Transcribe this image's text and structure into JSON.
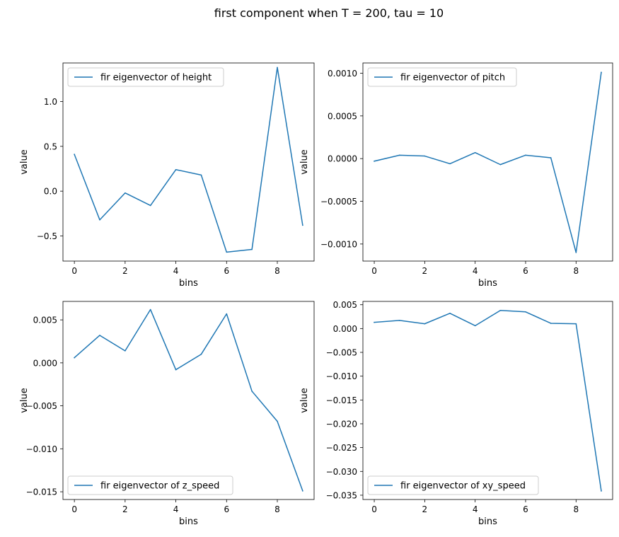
{
  "figure": {
    "suptitle": "first component when T = 200, tau = 10"
  },
  "chart_data": [
    {
      "type": "line",
      "title": "",
      "xlabel": "bins",
      "ylabel": "value",
      "xlim": [
        -0.45,
        9.45
      ],
      "ylim": [
        -0.78,
        1.43
      ],
      "xticks": [
        0,
        2,
        4,
        6,
        8
      ],
      "xtick_labels": [
        "0",
        "2",
        "4",
        "6",
        "8"
      ],
      "yticks": [
        -0.5,
        0.0,
        0.5,
        1.0
      ],
      "ytick_labels": [
        "−0.5",
        "0.0",
        "0.5",
        "1.0"
      ],
      "grid": false,
      "legend_position": "upper left",
      "series": [
        {
          "name": "fir eigenvector of height",
          "color": "#1f77b4",
          "x": [
            0,
            1,
            2,
            3,
            4,
            5,
            6,
            7,
            8,
            9
          ],
          "values": [
            0.41,
            -0.32,
            -0.02,
            -0.16,
            0.24,
            0.18,
            -0.68,
            -0.65,
            1.38,
            -0.38
          ]
        }
      ]
    },
    {
      "type": "line",
      "title": "",
      "xlabel": "bins",
      "ylabel": "value",
      "xlim": [
        -0.45,
        9.45
      ],
      "ylim": [
        -0.0012,
        0.00112
      ],
      "xticks": [
        0,
        2,
        4,
        6,
        8
      ],
      "xtick_labels": [
        "0",
        "2",
        "4",
        "6",
        "8"
      ],
      "yticks": [
        -0.001,
        -0.0005,
        0.0,
        0.0005,
        0.001
      ],
      "ytick_labels": [
        "−0.0010",
        "−0.0005",
        "0.0000",
        "0.0005",
        "0.0010"
      ],
      "grid": false,
      "legend_position": "upper left",
      "series": [
        {
          "name": "fir eigenvector of pitch",
          "color": "#1f77b4",
          "x": [
            0,
            1,
            2,
            3,
            4,
            5,
            6,
            7,
            8,
            9
          ],
          "values": [
            -3e-05,
            4e-05,
            3e-05,
            -6e-05,
            7e-05,
            -7e-05,
            4e-05,
            1e-05,
            -0.0011,
            0.00101
          ]
        }
      ]
    },
    {
      "type": "line",
      "title": "",
      "xlabel": "bins",
      "ylabel": "value",
      "xlim": [
        -0.45,
        9.45
      ],
      "ylim": [
        -0.0159,
        0.00715
      ],
      "xticks": [
        0,
        2,
        4,
        6,
        8
      ],
      "xtick_labels": [
        "0",
        "2",
        "4",
        "6",
        "8"
      ],
      "yticks": [
        -0.015,
        -0.01,
        -0.005,
        0.0,
        0.005
      ],
      "ytick_labels": [
        "−0.015",
        "−0.010",
        "−0.005",
        "0.000",
        "0.005"
      ],
      "grid": false,
      "legend_position": "lower left",
      "series": [
        {
          "name": "fir eigenvector of z_speed",
          "color": "#1f77b4",
          "x": [
            0,
            1,
            2,
            3,
            4,
            5,
            6,
            7,
            8,
            9
          ],
          "values": [
            0.0006,
            0.0032,
            0.0014,
            0.0062,
            -0.0008,
            0.001,
            0.0057,
            -0.0033,
            -0.0068,
            -0.0149
          ]
        }
      ]
    },
    {
      "type": "line",
      "title": "",
      "xlabel": "bins",
      "ylabel": "value",
      "xlim": [
        -0.45,
        9.45
      ],
      "ylim": [
        -0.0359,
        0.0057
      ],
      "xticks": [
        0,
        2,
        4,
        6,
        8
      ],
      "xtick_labels": [
        "0",
        "2",
        "4",
        "6",
        "8"
      ],
      "yticks": [
        -0.035,
        -0.03,
        -0.025,
        -0.02,
        -0.015,
        -0.01,
        -0.005,
        0.0,
        0.005
      ],
      "ytick_labels": [
        "−0.035",
        "−0.030",
        "−0.025",
        "−0.020",
        "−0.015",
        "−0.010",
        "−0.005",
        "0.000",
        "0.005"
      ],
      "grid": false,
      "legend_position": "lower left",
      "series": [
        {
          "name": "fir eigenvector of xy_speed",
          "color": "#1f77b4",
          "x": [
            0,
            1,
            2,
            3,
            4,
            5,
            6,
            7,
            8,
            9
          ],
          "values": [
            0.0013,
            0.0017,
            0.001,
            0.0032,
            0.0006,
            0.0038,
            0.0035,
            0.0011,
            0.001,
            -0.0341
          ]
        }
      ]
    }
  ]
}
